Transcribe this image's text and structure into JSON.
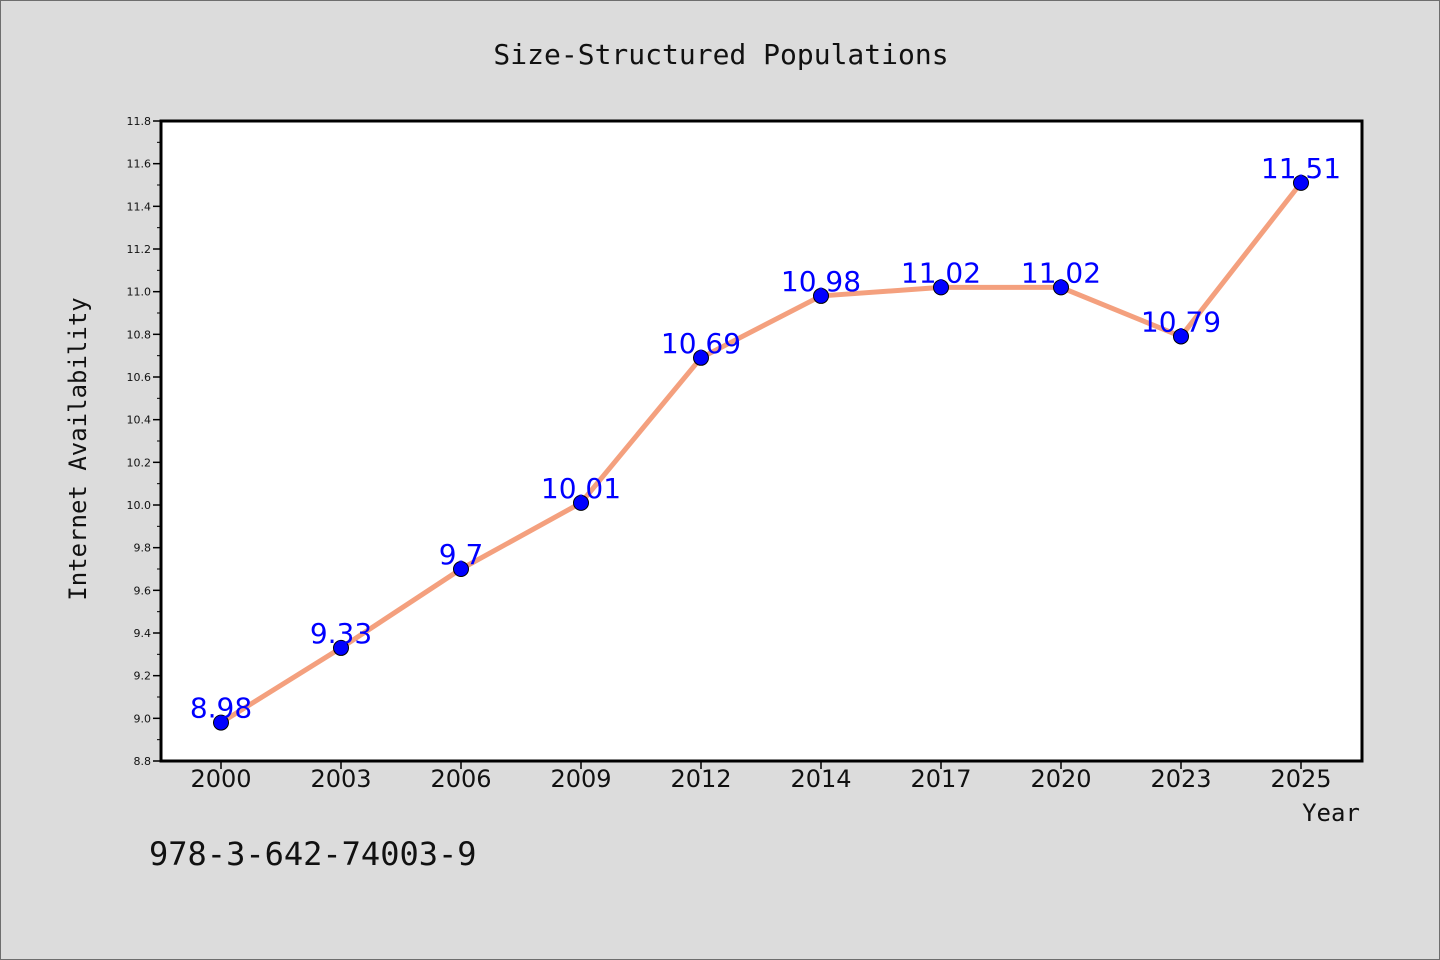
{
  "chart_data": {
    "type": "line",
    "title": "Size-Structured Populations",
    "xlabel": "Year",
    "ylabel": "Internet Availability",
    "categories": [
      "2000",
      "2003",
      "2006",
      "2009",
      "2012",
      "2014",
      "2017",
      "2020",
      "2023",
      "2025"
    ],
    "series": [
      {
        "values": [
          8.98,
          9.33,
          9.7,
          10.01,
          10.69,
          10.98,
          11.02,
          11.02,
          10.79,
          11.51
        ],
        "labels": [
          "8.98",
          "9.33",
          "9.7",
          "10.01",
          "10.69",
          "10.98",
          "11.02",
          "11.02",
          "10.79",
          "11.51"
        ],
        "line_color": "#f4a07e",
        "marker_color": "#0000ff",
        "label_color": "#0000ff"
      }
    ],
    "ylim": [
      8.8,
      11.8
    ],
    "yticks": [
      "8.8",
      "9.0",
      "9.2",
      "9.4",
      "9.6",
      "9.8",
      "10.0",
      "10.2",
      "10.4",
      "10.6",
      "10.8",
      "11.0",
      "11.2",
      "11.4",
      "11.6",
      "11.8"
    ],
    "grid": false,
    "legend": "none"
  },
  "annotation": {
    "text": "978-3-642-74003-9"
  }
}
